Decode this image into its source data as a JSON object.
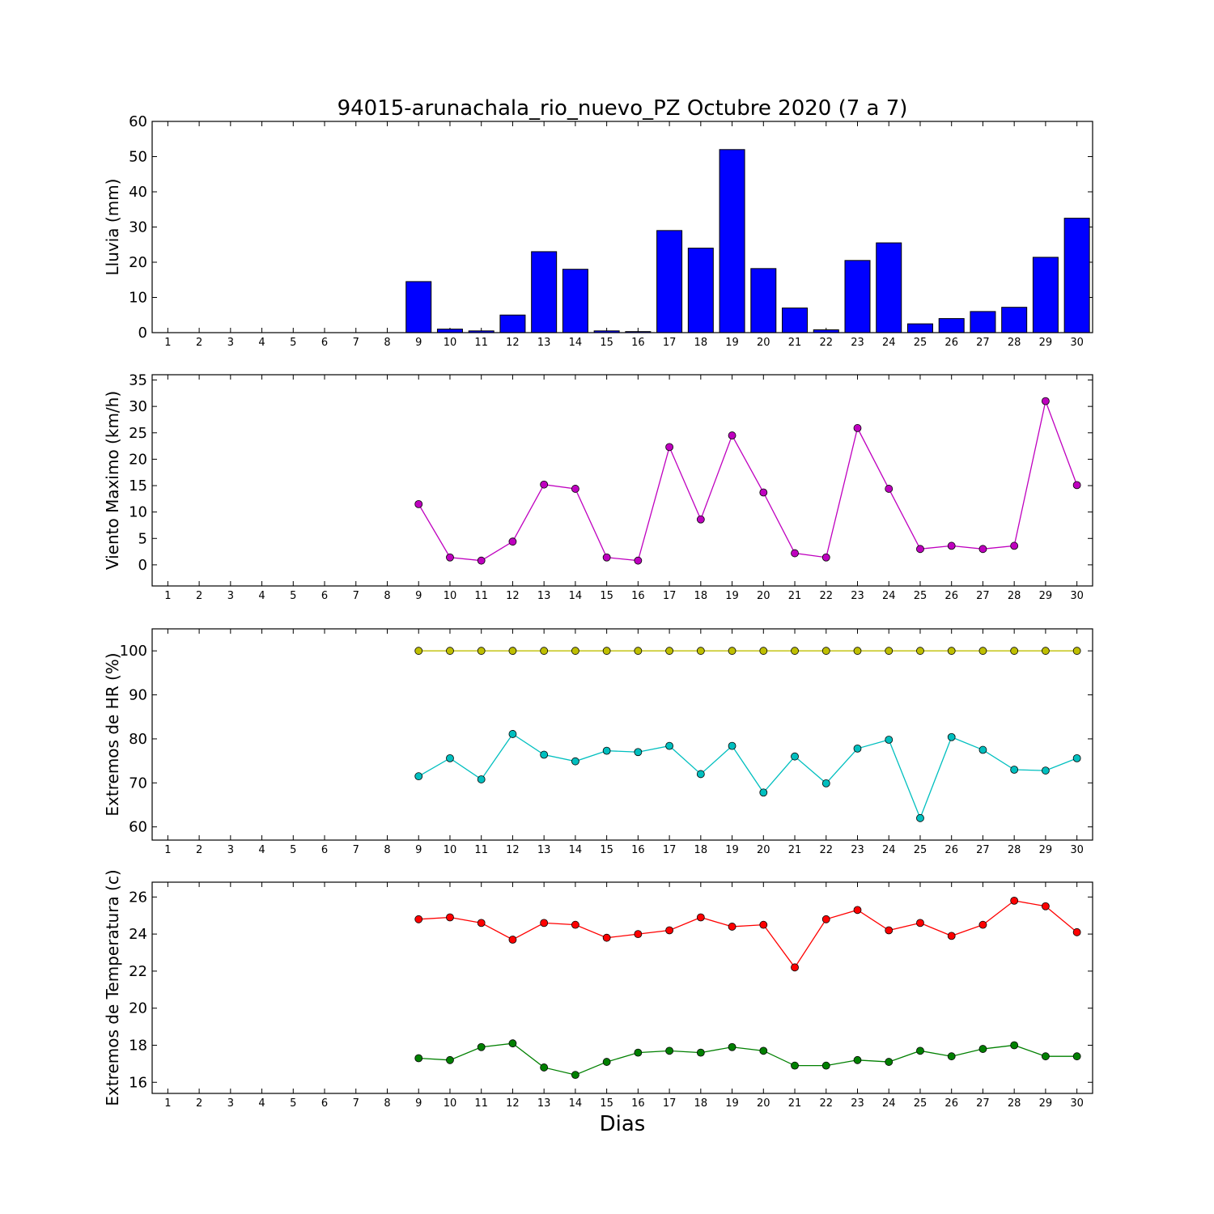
{
  "chart_data": {
    "title": "94015-arunachala_rio_nuevo_PZ Octubre 2020  (7 a 7)",
    "xlabel": "Dias",
    "x_ticks": [
      1,
      2,
      3,
      4,
      5,
      6,
      7,
      8,
      9,
      10,
      11,
      12,
      13,
      14,
      15,
      16,
      17,
      18,
      19,
      20,
      21,
      22,
      23,
      24,
      25,
      26,
      27,
      28,
      29,
      30
    ],
    "panels": [
      {
        "type": "bar",
        "ylabel": "Lluvia (mm)",
        "ylim": [
          0,
          60
        ],
        "yticks": [
          0,
          10,
          20,
          30,
          40,
          50,
          60
        ],
        "series": [
          {
            "color": "#0000ff",
            "x": [
              9,
              10,
              11,
              12,
              13,
              14,
              15,
              16,
              17,
              18,
              19,
              20,
              21,
              22,
              23,
              24,
              25,
              26,
              27,
              28,
              29,
              30
            ],
            "values": [
              14.5,
              1.0,
              0.5,
              5.0,
              23.0,
              18.0,
              0.5,
              0.3,
              29.0,
              24.0,
              52.0,
              18.2,
              7.0,
              0.8,
              20.5,
              25.5,
              2.5,
              4.0,
              6.0,
              7.2,
              21.4,
              32.5
            ]
          }
        ]
      },
      {
        "type": "line",
        "ylabel": "Viento Maximo (km/h)",
        "ylim": [
          -4,
          36
        ],
        "yticks": [
          0,
          5,
          10,
          15,
          20,
          25,
          30,
          35
        ],
        "series": [
          {
            "color": "#bf00bf",
            "x": [
              9,
              10,
              11,
              12,
              13,
              14,
              15,
              16,
              17,
              18,
              19,
              20,
              21,
              22,
              23,
              24,
              25,
              26,
              27,
              28,
              29,
              30
            ],
            "values": [
              11.5,
              1.4,
              0.8,
              4.4,
              15.2,
              14.4,
              1.4,
              0.8,
              22.3,
              8.6,
              24.5,
              13.7,
              2.2,
              1.4,
              25.9,
              14.4,
              3.0,
              3.6,
              3.0,
              3.6,
              31.0,
              15.1
            ]
          }
        ]
      },
      {
        "type": "line",
        "ylabel": "Extremos de HR (%)",
        "ylim": [
          57,
          105
        ],
        "yticks": [
          60,
          70,
          80,
          90,
          100
        ],
        "series": [
          {
            "color": "#bfbf00",
            "x": [
              9,
              10,
              11,
              12,
              13,
              14,
              15,
              16,
              17,
              18,
              19,
              20,
              21,
              22,
              23,
              24,
              25,
              26,
              27,
              28,
              29,
              30
            ],
            "values": [
              100,
              100,
              100,
              100,
              100,
              100,
              100,
              100,
              100,
              100,
              100,
              100,
              100,
              100,
              100,
              100,
              100,
              100,
              100,
              100,
              100,
              100
            ]
          },
          {
            "color": "#00bfbf",
            "x": [
              9,
              10,
              11,
              12,
              13,
              14,
              15,
              16,
              17,
              18,
              19,
              20,
              21,
              22,
              23,
              24,
              25,
              26,
              27,
              28,
              29,
              30
            ],
            "values": [
              71.5,
              75.6,
              70.8,
              81.1,
              76.4,
              74.9,
              77.3,
              77.0,
              78.4,
              72.0,
              78.4,
              67.8,
              76.0,
              69.9,
              77.8,
              79.8,
              62.0,
              80.4,
              77.5,
              73.0,
              72.8,
              75.6
            ]
          }
        ]
      },
      {
        "type": "line",
        "ylabel": "Extremos de Temperatura (c)",
        "ylim": [
          15.4,
          26.8
        ],
        "yticks": [
          16,
          18,
          20,
          22,
          24,
          26
        ],
        "series": [
          {
            "color": "#ff0000",
            "x": [
              9,
              10,
              11,
              12,
              13,
              14,
              15,
              16,
              17,
              18,
              19,
              20,
              21,
              22,
              23,
              24,
              25,
              26,
              27,
              28,
              29,
              30
            ],
            "values": [
              24.8,
              24.9,
              24.6,
              23.7,
              24.6,
              24.5,
              23.8,
              24.0,
              24.2,
              24.9,
              24.4,
              24.5,
              22.2,
              24.8,
              25.3,
              24.2,
              24.6,
              23.9,
              24.5,
              25.8,
              25.5,
              24.1
            ]
          },
          {
            "color": "#008000",
            "x": [
              9,
              10,
              11,
              12,
              13,
              14,
              15,
              16,
              17,
              18,
              19,
              20,
              21,
              22,
              23,
              24,
              25,
              26,
              27,
              28,
              29,
              30
            ],
            "values": [
              17.3,
              17.2,
              17.9,
              18.1,
              16.8,
              16.4,
              17.1,
              17.6,
              17.7,
              17.6,
              17.9,
              17.7,
              16.9,
              16.9,
              17.2,
              17.1,
              17.7,
              17.4,
              17.8,
              18.0,
              17.4,
              17.4
            ]
          }
        ]
      }
    ]
  }
}
